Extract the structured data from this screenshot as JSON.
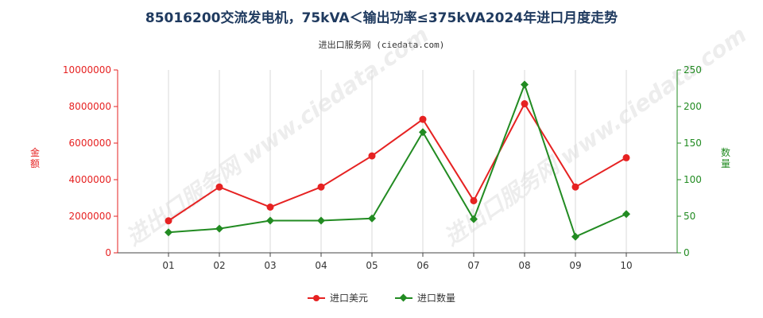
{
  "title": "85016200交流发电机，75kVA＜输出功率≤375kVA2024年进口月度走势",
  "subtitle": "进出口服务网 (ciedata.com)",
  "watermark": "进出口服务网 www.ciedata.com",
  "chart_data": {
    "type": "line",
    "categories": [
      "01",
      "02",
      "03",
      "04",
      "05",
      "06",
      "07",
      "08",
      "09",
      "10"
    ],
    "y_left": {
      "label": "金额",
      "ylim": [
        0,
        10000000
      ],
      "ticks": [
        "0",
        "2000000",
        "4000000",
        "6000000",
        "8000000",
        "10000000"
      ],
      "color": "#e62222"
    },
    "y_right": {
      "label": "数量",
      "ylim": [
        0,
        250
      ],
      "ticks": [
        "0",
        "50",
        "100",
        "150",
        "200",
        "250"
      ],
      "color": "#228B22"
    },
    "series": [
      {
        "name": "进口美元",
        "axis": "left",
        "color": "#e62222",
        "marker": "circle",
        "values": [
          1750000,
          3600000,
          2500000,
          3600000,
          5300000,
          7300000,
          2850000,
          8150000,
          3600000,
          5200000
        ]
      },
      {
        "name": "进口数量",
        "axis": "right",
        "color": "#228B22",
        "marker": "diamond",
        "values": [
          28,
          33,
          44,
          44,
          47,
          165,
          46,
          230,
          22,
          53
        ]
      }
    ],
    "grid": "vertical",
    "legend_position": "bottom"
  }
}
